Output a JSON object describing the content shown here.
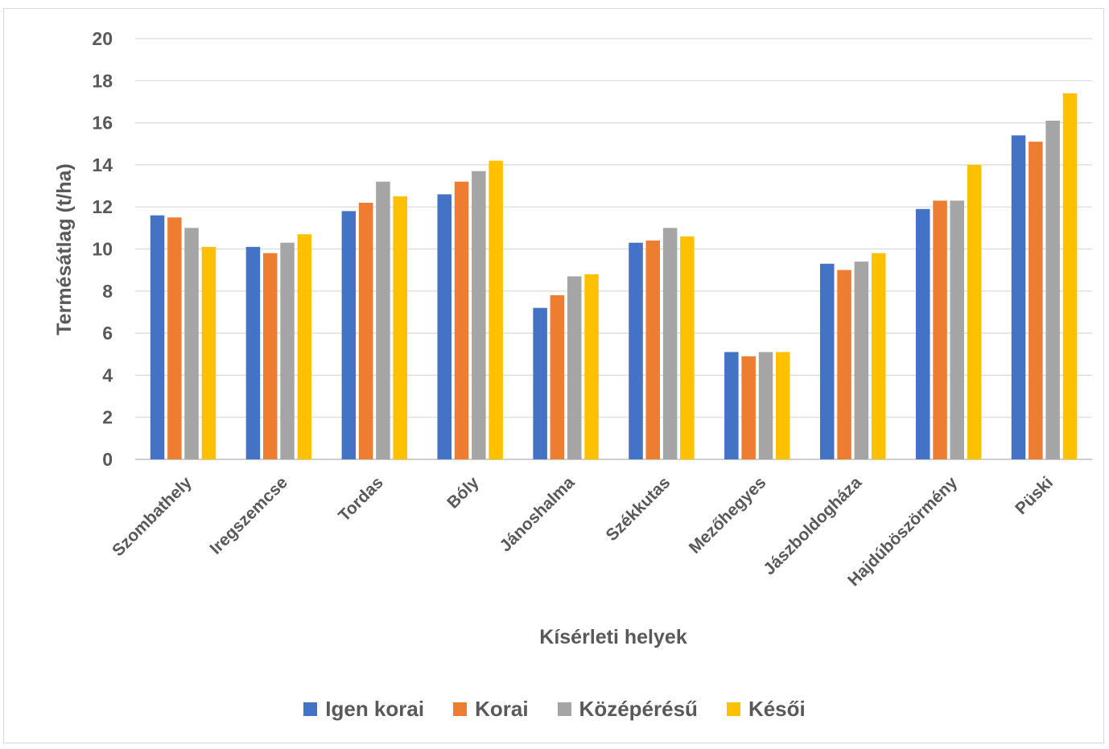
{
  "chart_data": {
    "type": "bar",
    "title": "",
    "xlabel": "Kísérleti helyek",
    "ylabel": "Termésátlag (t/ha)",
    "ylim": [
      0,
      20
    ],
    "yticks": [
      "0",
      "2",
      "4",
      "6",
      "8",
      "10",
      "12",
      "14",
      "16",
      "18",
      "20"
    ],
    "grid": true,
    "legend_position": "bottom",
    "categories": [
      "Szombathely",
      "Iregszemcse",
      "Tordas",
      "Bóly",
      "Jánoshalma",
      "Székkutas",
      "Mezőhegyes",
      "Jászboldogháza",
      "Hajdúböszörmény",
      "Püski"
    ],
    "series": [
      {
        "name": "Igen korai",
        "color": "#4472c4",
        "values": [
          11.6,
          10.1,
          11.8,
          12.6,
          7.2,
          10.3,
          5.1,
          9.3,
          11.9,
          15.4
        ]
      },
      {
        "name": "Korai",
        "color": "#ed7d31",
        "values": [
          11.5,
          9.8,
          12.2,
          13.2,
          7.8,
          10.4,
          4.9,
          9.0,
          12.3,
          15.1
        ]
      },
      {
        "name": "Középérésű",
        "color": "#a5a5a5",
        "values": [
          11.0,
          10.3,
          13.2,
          13.7,
          8.7,
          11.0,
          5.1,
          9.4,
          12.3,
          16.1
        ]
      },
      {
        "name": "Késői",
        "color": "#ffc000",
        "values": [
          10.1,
          10.7,
          12.5,
          14.2,
          8.8,
          10.6,
          5.1,
          9.8,
          14.0,
          17.4
        ]
      }
    ]
  }
}
